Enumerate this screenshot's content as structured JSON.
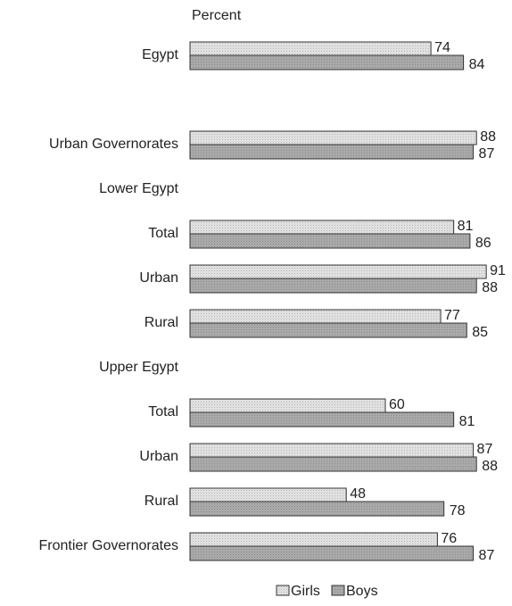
{
  "chart_data": {
    "type": "bar",
    "orientation": "horizontal",
    "title": "Percent",
    "categories": [
      "Egypt",
      null,
      "Urban Governorates",
      "Lower Egypt",
      "Total",
      "Urban",
      "Rural",
      "Upper Egypt",
      "Total",
      "Urban",
      "Rural",
      "Frontier Governorates"
    ],
    "series": [
      {
        "name": "Girls",
        "color": "#e0e0e0",
        "values": [
          74,
          null,
          88,
          null,
          81,
          91,
          77,
          null,
          60,
          87,
          48,
          76
        ]
      },
      {
        "name": "Boys",
        "color": "#a9a9a9",
        "values": [
          84,
          null,
          87,
          null,
          86,
          88,
          85,
          null,
          81,
          88,
          78,
          87
        ]
      }
    ],
    "legend": "bottom"
  }
}
